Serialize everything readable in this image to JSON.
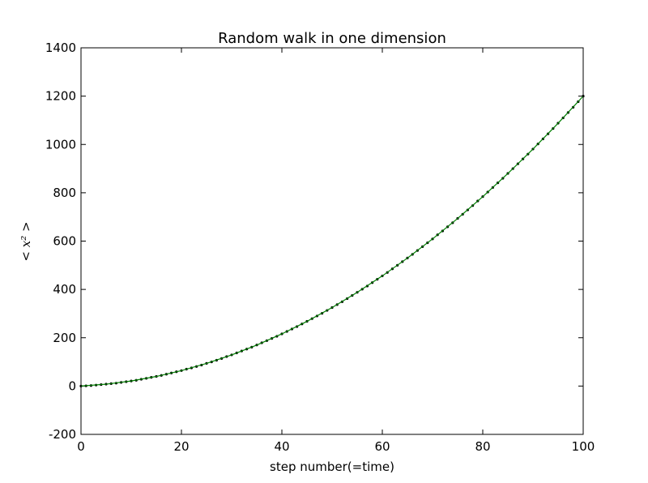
{
  "chart_data": {
    "type": "line",
    "title": "Random walk in one dimension",
    "xlabel": "step number(=time)",
    "ylabel": "< x² >",
    "xlim": [
      0,
      100
    ],
    "ylim": [
      -200,
      1400
    ],
    "xticks": [
      0,
      20,
      40,
      60,
      80,
      100
    ],
    "yticks": [
      -200,
      0,
      200,
      400,
      600,
      800,
      1000,
      1200,
      1400
    ],
    "series": [
      {
        "style": "dots",
        "color": "#000000",
        "x": [
          0,
          1,
          2,
          3,
          4,
          5,
          6,
          7,
          8,
          9,
          10,
          11,
          12,
          13,
          14,
          15,
          16,
          17,
          18,
          19,
          20,
          21,
          22,
          23,
          24,
          25,
          26,
          27,
          28,
          29,
          30,
          31,
          32,
          33,
          34,
          35,
          36,
          37,
          38,
          39,
          40,
          41,
          42,
          43,
          44,
          45,
          46,
          47,
          48,
          49,
          50,
          51,
          52,
          53,
          54,
          55,
          56,
          57,
          58,
          59,
          60,
          61,
          62,
          63,
          64,
          65,
          66,
          67,
          68,
          69,
          70,
          71,
          72,
          73,
          74,
          75,
          76,
          77,
          78,
          79,
          80,
          81,
          82,
          83,
          84,
          85,
          86,
          87,
          88,
          89,
          90,
          91,
          92,
          93,
          94,
          95,
          96,
          97,
          98,
          99,
          100
        ],
        "values": [
          0,
          1,
          2,
          4,
          6,
          8,
          10,
          12,
          15,
          18,
          21,
          24,
          28,
          32,
          36,
          40,
          44,
          49,
          54,
          59,
          64,
          70,
          75,
          81,
          87,
          94,
          100,
          107,
          114,
          122,
          129,
          137,
          145,
          153,
          161,
          170,
          179,
          188,
          197,
          206,
          216,
          226,
          236,
          246,
          257,
          268,
          279,
          290,
          301,
          313,
          325,
          337,
          349,
          362,
          375,
          388,
          401,
          414,
          428,
          442,
          456,
          470,
          485,
          500,
          515,
          530,
          545,
          561,
          577,
          593,
          609,
          626,
          642,
          659,
          676,
          694,
          711,
          729,
          747,
          766,
          784,
          803,
          822,
          841,
          860,
          880,
          900,
          920,
          940,
          960,
          981,
          1002,
          1023,
          1044,
          1066,
          1088,
          1110,
          1132,
          1154,
          1177,
          1200
        ]
      },
      {
        "style": "line",
        "color": "#008000",
        "x": [
          0,
          5,
          10,
          15,
          20,
          25,
          30,
          35,
          40,
          45,
          50,
          55,
          60,
          65,
          70,
          75,
          80,
          85,
          90,
          95,
          100
        ],
        "values": [
          0,
          7.75,
          21,
          39.75,
          64,
          93.75,
          129,
          169.75,
          216,
          267.75,
          325,
          387.75,
          456,
          529.75,
          609,
          693.75,
          784,
          879.75,
          981,
          1087.75,
          1200
        ]
      }
    ]
  }
}
